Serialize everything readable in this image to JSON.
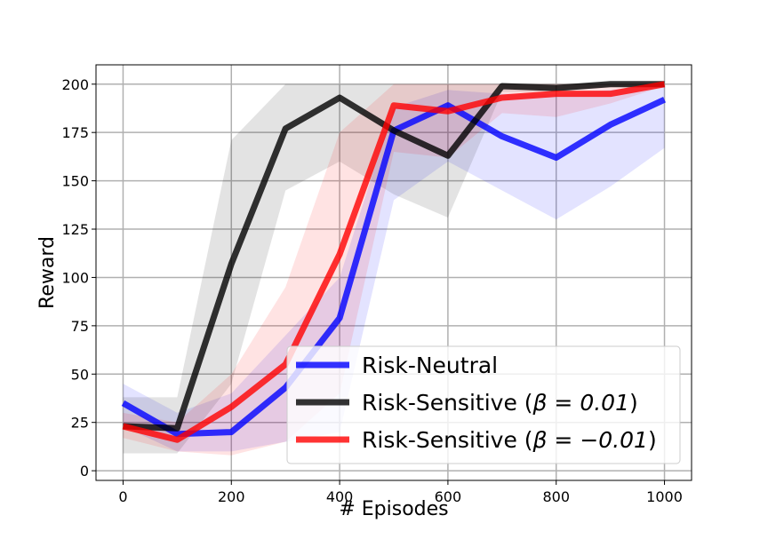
{
  "chart_data": {
    "type": "line",
    "title": "",
    "xlabel": "# Episodes",
    "ylabel": "Reward",
    "xlim": [
      -50,
      1050
    ],
    "ylim": [
      -5,
      210
    ],
    "grid": true,
    "legend_position": "lower-right",
    "x_ticks": [
      0,
      200,
      400,
      600,
      800,
      1000
    ],
    "x_tick_labels": [
      "0",
      "200",
      "400",
      "600",
      "800",
      "1000"
    ],
    "y_ticks": [
      0,
      25,
      50,
      75,
      100,
      125,
      150,
      175,
      200
    ],
    "y_tick_labels": [
      "0",
      "25",
      "50",
      "75",
      "100",
      "125",
      "150",
      "175",
      "200"
    ],
    "x": [
      0,
      100,
      200,
      300,
      400,
      500,
      600,
      700,
      800,
      900,
      1000
    ],
    "series": [
      {
        "name": "Risk-Neutral",
        "label_prefix": "Risk-Neutral",
        "label_math": "",
        "label_suffix": "",
        "color": "#0000ff",
        "values": [
          35,
          19,
          20,
          43,
          79,
          176,
          189,
          173,
          162,
          179,
          192
        ],
        "lower": [
          23,
          10,
          10,
          15,
          20,
          140,
          160,
          145,
          130,
          147,
          167
        ],
        "upper": [
          45,
          30,
          40,
          70,
          100,
          188,
          197,
          195,
          195,
          197,
          200
        ]
      },
      {
        "name": "Risk-Sensitive (β = 0.01)",
        "label_prefix": "Risk-Sensitive (",
        "label_math": "β = 0.01",
        "label_suffix": ")",
        "color": "#000000",
        "values": [
          23,
          22,
          107,
          177,
          193,
          176,
          163,
          199,
          198,
          200,
          200
        ],
        "lower": [
          9,
          9,
          45,
          145,
          160,
          143,
          131,
          196,
          196,
          199,
          199
        ],
        "upper": [
          38,
          38,
          171,
          200,
          200,
          200,
          200,
          200,
          200,
          200,
          200
        ]
      },
      {
        "name": "Risk-Sensitive (β = −0.01)",
        "label_prefix": "Risk-Sensitive (",
        "label_math": "β = −0.01",
        "label_suffix": ")",
        "color": "#ff0000",
        "values": [
          23,
          16,
          33,
          55,
          112,
          189,
          186,
          193,
          195,
          195,
          200
        ],
        "lower": [
          17,
          10,
          8,
          15,
          40,
          165,
          162,
          185,
          183,
          190,
          199
        ],
        "upper": [
          30,
          25,
          50,
          95,
          175,
          200,
          200,
          200,
          200,
          200,
          200
        ]
      }
    ]
  }
}
